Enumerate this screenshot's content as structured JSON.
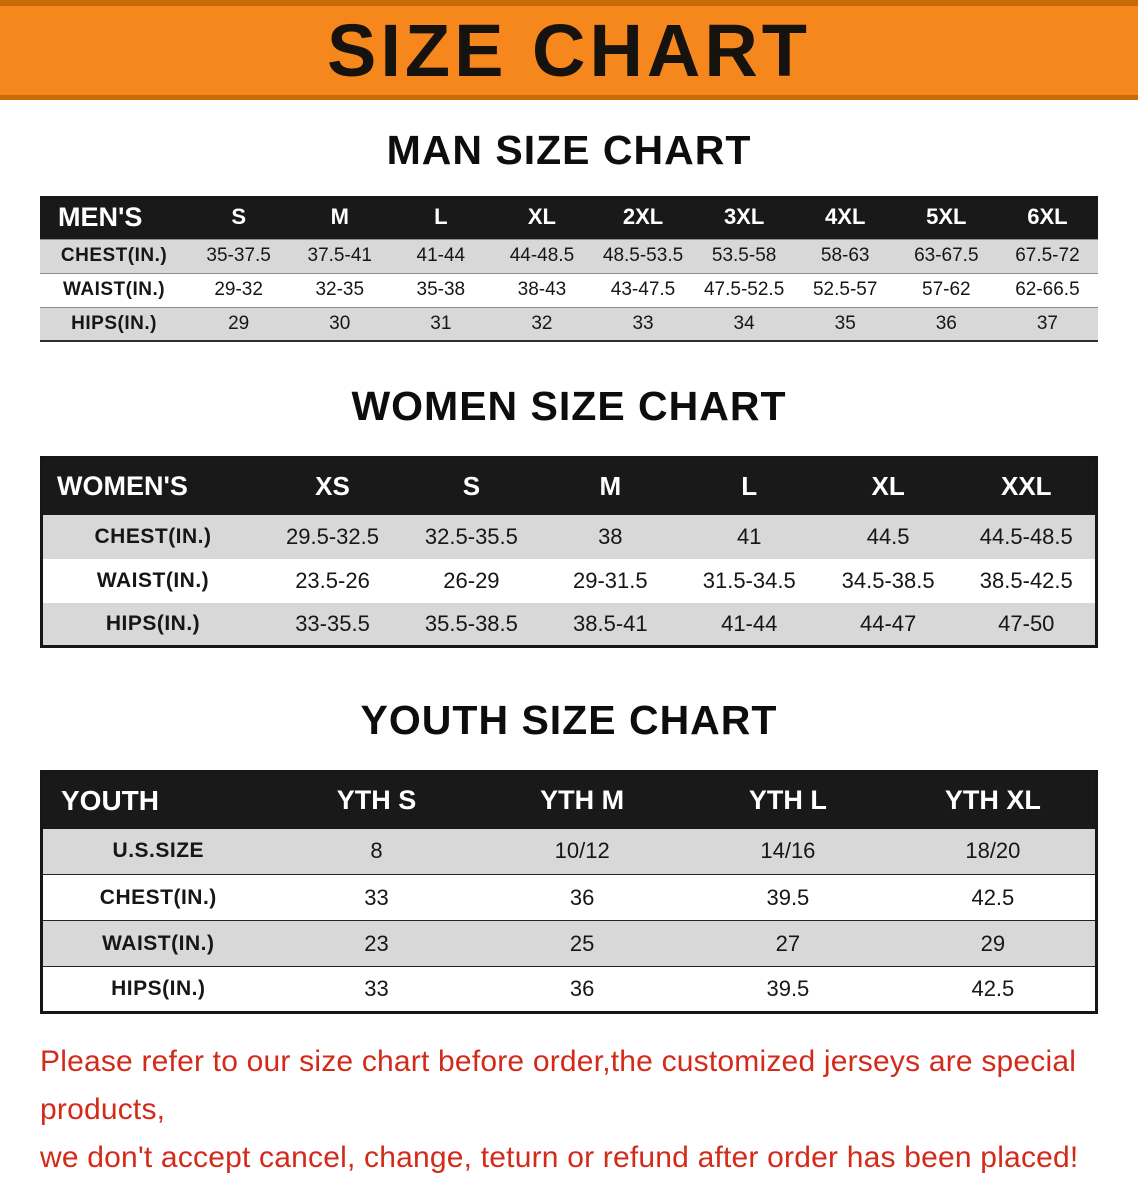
{
  "banner": {
    "title": "SIZE CHART",
    "bg_color": "#f6871d",
    "edge_color": "#c96a08",
    "text_color": "#16120e"
  },
  "sections": [
    {
      "id": "men",
      "heading": "MAN SIZE CHART",
      "table": {
        "header_label": "MEN'S",
        "columns": [
          "S",
          "M",
          "L",
          "XL",
          "2XL",
          "3XL",
          "4XL",
          "5XL",
          "6XL"
        ],
        "rows": [
          {
            "label": "CHEST(IN.)",
            "values": [
              "35-37.5",
              "37.5-41",
              "41-44",
              "44-48.5",
              "48.5-53.5",
              "53.5-58",
              "58-63",
              "63-67.5",
              "67.5-72"
            ]
          },
          {
            "label": "WAIST(IN.)",
            "values": [
              "29-32",
              "32-35",
              "35-38",
              "38-43",
              "43-47.5",
              "47.5-52.5",
              "52.5-57",
              "57-62",
              "62-66.5"
            ]
          },
          {
            "label": "HIPS(IN.)",
            "values": [
              "29",
              "30",
              "31",
              "32",
              "33",
              "34",
              "35",
              "36",
              "37"
            ]
          }
        ]
      }
    },
    {
      "id": "women",
      "heading": "WOMEN SIZE CHART",
      "table": {
        "header_label": "WOMEN'S",
        "columns": [
          "XS",
          "S",
          "M",
          "L",
          "XL",
          "XXL"
        ],
        "rows": [
          {
            "label": "CHEST(IN.)",
            "values": [
              "29.5-32.5",
              "32.5-35.5",
              "38",
              "41",
              "44.5",
              "44.5-48.5"
            ]
          },
          {
            "label": "WAIST(IN.)",
            "values": [
              "23.5-26",
              "26-29",
              "29-31.5",
              "31.5-34.5",
              "34.5-38.5",
              "38.5-42.5"
            ]
          },
          {
            "label": "HIPS(IN.)",
            "values": [
              "33-35.5",
              "35.5-38.5",
              "38.5-41",
              "41-44",
              "44-47",
              "47-50"
            ]
          }
        ]
      }
    },
    {
      "id": "youth",
      "heading": "YOUTH SIZE CHART",
      "table": {
        "header_label": "YOUTH",
        "columns": [
          "YTH S",
          "YTH M",
          "YTH L",
          "YTH XL"
        ],
        "rows": [
          {
            "label": "U.S.SIZE",
            "values": [
              "8",
              "10/12",
              "14/16",
              "18/20"
            ]
          },
          {
            "label": "CHEST(IN.)",
            "values": [
              "33",
              "36",
              "39.5",
              "42.5"
            ]
          },
          {
            "label": "WAIST(IN.)",
            "values": [
              "23",
              "25",
              "27",
              "29"
            ]
          },
          {
            "label": "HIPS(IN.)",
            "values": [
              "33",
              "36",
              "39.5",
              "42.5"
            ]
          }
        ]
      }
    }
  ],
  "disclaimer": {
    "color": "#d32a1a",
    "line1": "Please refer to our size chart before order,the customized jerseys are special products,",
    "line2": "we don't accept cancel, change, teturn or refund after order has been placed!"
  }
}
